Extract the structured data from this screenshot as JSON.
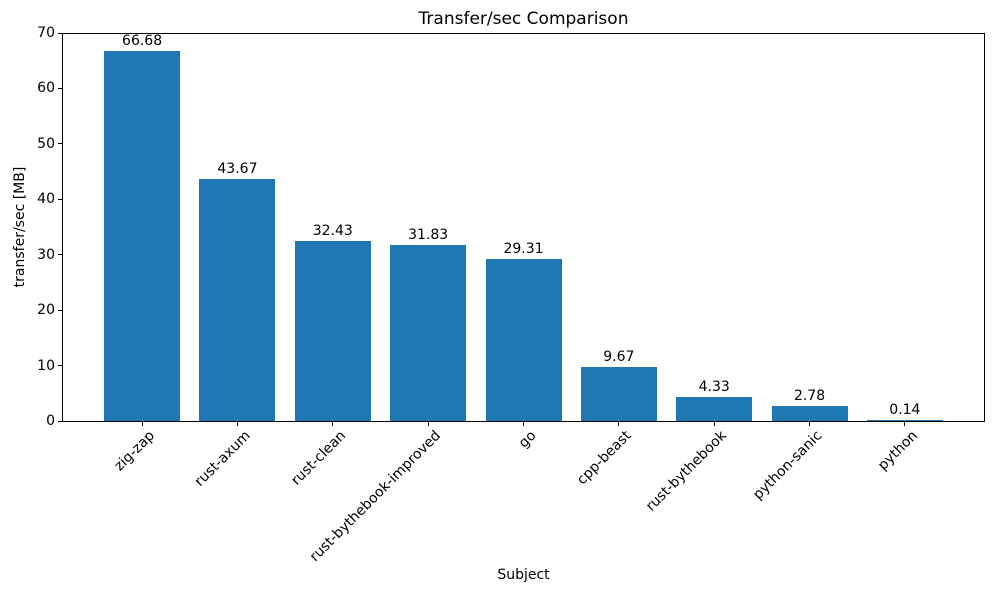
{
  "chart_data": {
    "type": "bar",
    "title": "Transfer/sec Comparison",
    "xlabel": "Subject",
    "ylabel": "transfer/sec [MB]",
    "categories": [
      "zig-zap",
      "rust-axum",
      "rust-clean",
      "rust-bythebook-improved",
      "go",
      "cpp-beast",
      "rust-bythebook",
      "python-sanic",
      "python"
    ],
    "values": [
      66.68,
      43.67,
      32.43,
      31.83,
      29.31,
      9.67,
      4.33,
      2.78,
      0.14
    ],
    "bar_labels": [
      "66.68",
      "43.67",
      "32.43",
      "31.83",
      "29.31",
      "9.67",
      "4.33",
      "2.78",
      "0.14"
    ],
    "ylim": [
      0,
      70
    ],
    "yticks": [
      0,
      10,
      20,
      30,
      40,
      50,
      60,
      70
    ],
    "bar_color": "#1f77b4",
    "axis_color": "#000000",
    "x_tick_rotation_deg": 45,
    "grid": false,
    "legend": false
  }
}
